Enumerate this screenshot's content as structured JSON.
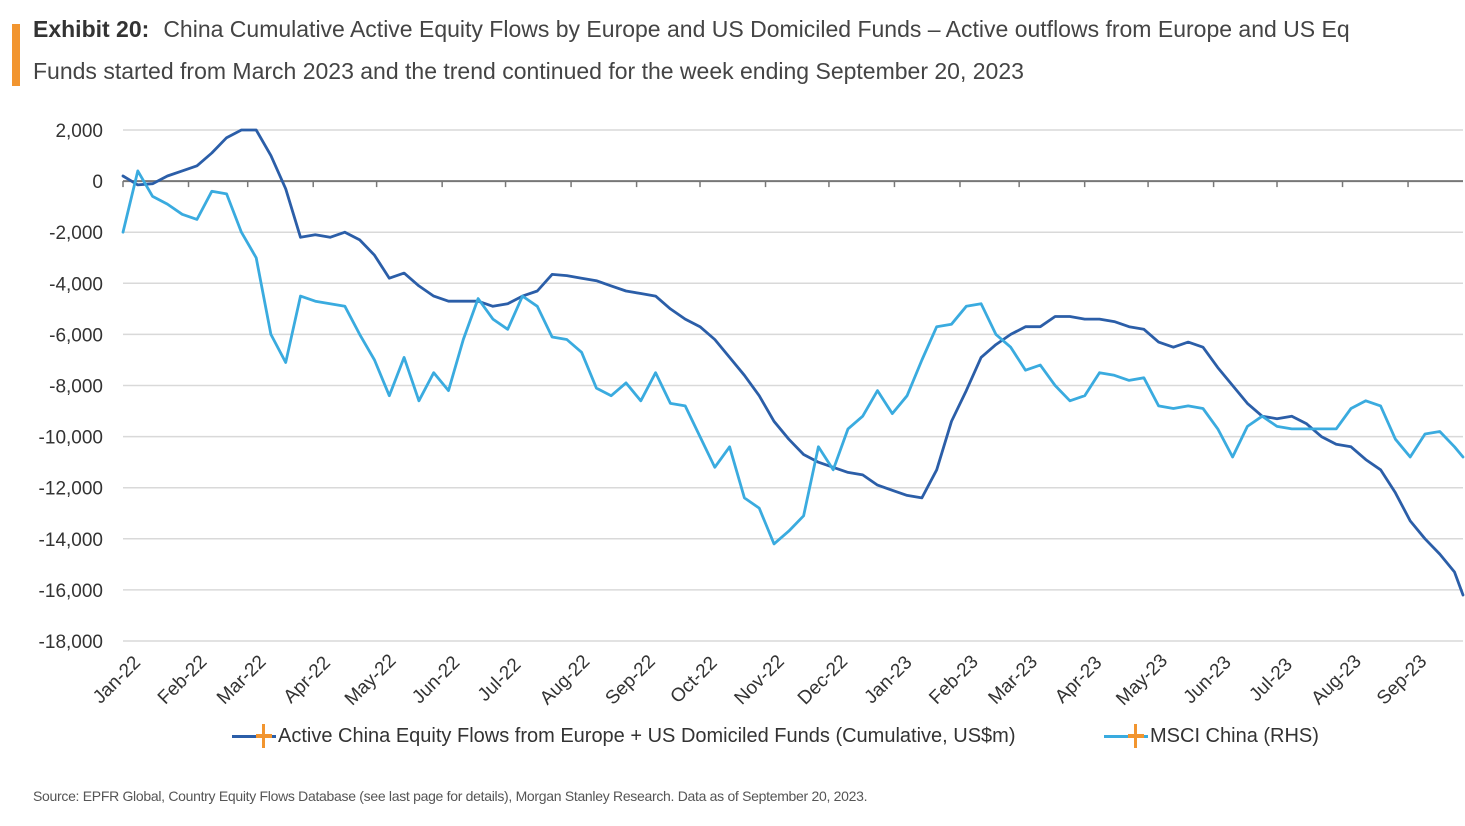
{
  "header": {
    "exhibit_label": "Exhibit 20:",
    "title_line1": "China Cumulative Active Equity Flows by Europe and US Domiciled Funds – Active outflows from Europe and US Eq",
    "title_line2": "Funds started from March 2023 and the trend continued for the week ending September 20, 2023"
  },
  "colors": {
    "accent": "#f2952f",
    "series_dark": "#2b5ea8",
    "series_light": "#3aabdf",
    "grid": "#d9d9d9",
    "axis": "#777777"
  },
  "legend": {
    "item1": "Active China Equity Flows from Europe + US Domiciled Funds (Cumulative, US$m)",
    "item2": "MSCI China (RHS)"
  },
  "source": "Source: EPFR Global, Country Equity Flows Database (see last page for details), Morgan Stanley Research. Data as of September 20, 2023.",
  "chart_data": {
    "type": "line",
    "ylim": [
      -18000,
      2000
    ],
    "yticks": [
      2000,
      0,
      -2000,
      -4000,
      -6000,
      -8000,
      -10000,
      -12000,
      -14000,
      -16000,
      -18000
    ],
    "ytick_labels": [
      "2,000",
      "0",
      "-2,000",
      "-4,000",
      "-6,000",
      "-8,000",
      "-10,000",
      "-12,000",
      "-14,000",
      "-16,000",
      "-18,000"
    ],
    "x_labels": [
      "Jan-22",
      "Feb-22",
      "Mar-22",
      "Apr-22",
      "May-22",
      "Jun-22",
      "Jul-22",
      "Aug-22",
      "Sep-22",
      "Oct-22",
      "Nov-22",
      "Dec-22",
      "Jan-23",
      "Feb-23",
      "Mar-23",
      "Apr-23",
      "May-23",
      "Jun-23",
      "Jul-23",
      "Aug-23",
      "Sep-23"
    ],
    "x_range": [
      "2022-01-01",
      "2023-09-27"
    ],
    "grid": true,
    "legend_position": "bottom",
    "series": [
      {
        "name": "Active China Equity Flows from Europe + US Domiciled Funds (Cumulative, US$m)",
        "color": "#2b5ea8",
        "points": [
          [
            "2022-01-01",
            200
          ],
          [
            "2022-01-08",
            -150
          ],
          [
            "2022-01-15",
            -100
          ],
          [
            "2022-01-22",
            200
          ],
          [
            "2022-01-29",
            400
          ],
          [
            "2022-02-05",
            600
          ],
          [
            "2022-02-12",
            1100
          ],
          [
            "2022-02-19",
            1700
          ],
          [
            "2022-02-26",
            2000
          ],
          [
            "2022-03-05",
            2000
          ],
          [
            "2022-03-12",
            1000
          ],
          [
            "2022-03-19",
            -300
          ],
          [
            "2022-03-26",
            -2200
          ],
          [
            "2022-04-02",
            -2100
          ],
          [
            "2022-04-09",
            -2200
          ],
          [
            "2022-04-16",
            -2000
          ],
          [
            "2022-04-23",
            -2300
          ],
          [
            "2022-04-30",
            -2900
          ],
          [
            "2022-05-07",
            -3800
          ],
          [
            "2022-05-14",
            -3600
          ],
          [
            "2022-05-21",
            -4100
          ],
          [
            "2022-05-28",
            -4500
          ],
          [
            "2022-06-04",
            -4700
          ],
          [
            "2022-06-11",
            -4700
          ],
          [
            "2022-06-18",
            -4700
          ],
          [
            "2022-06-25",
            -4900
          ],
          [
            "2022-07-02",
            -4800
          ],
          [
            "2022-07-09",
            -4500
          ],
          [
            "2022-07-16",
            -4300
          ],
          [
            "2022-07-23",
            -3650
          ],
          [
            "2022-07-30",
            -3700
          ],
          [
            "2022-08-06",
            -3800
          ],
          [
            "2022-08-13",
            -3900
          ],
          [
            "2022-08-20",
            -4100
          ],
          [
            "2022-08-27",
            -4300
          ],
          [
            "2022-09-03",
            -4400
          ],
          [
            "2022-09-10",
            -4500
          ],
          [
            "2022-09-17",
            -5000
          ],
          [
            "2022-09-24",
            -5400
          ],
          [
            "2022-10-01",
            -5700
          ],
          [
            "2022-10-08",
            -6200
          ],
          [
            "2022-10-15",
            -6900
          ],
          [
            "2022-10-22",
            -7600
          ],
          [
            "2022-10-29",
            -8400
          ],
          [
            "2022-11-05",
            -9400
          ],
          [
            "2022-11-12",
            -10100
          ],
          [
            "2022-11-19",
            -10700
          ],
          [
            "2022-11-26",
            -11000
          ],
          [
            "2022-12-03",
            -11200
          ],
          [
            "2022-12-10",
            -11400
          ],
          [
            "2022-12-17",
            -11500
          ],
          [
            "2022-12-24",
            -11900
          ],
          [
            "2022-12-31",
            -12100
          ],
          [
            "2023-01-07",
            -12300
          ],
          [
            "2023-01-14",
            -12400
          ],
          [
            "2023-01-21",
            -11300
          ],
          [
            "2023-01-28",
            -9400
          ],
          [
            "2023-02-04",
            -8200
          ],
          [
            "2023-02-11",
            -6900
          ],
          [
            "2023-02-18",
            -6400
          ],
          [
            "2023-02-25",
            -6000
          ],
          [
            "2023-03-04",
            -5700
          ],
          [
            "2023-03-11",
            -5700
          ],
          [
            "2023-03-18",
            -5300
          ],
          [
            "2023-03-25",
            -5300
          ],
          [
            "2023-04-01",
            -5400
          ],
          [
            "2023-04-08",
            -5400
          ],
          [
            "2023-04-15",
            -5500
          ],
          [
            "2023-04-22",
            -5700
          ],
          [
            "2023-04-29",
            -5800
          ],
          [
            "2023-05-06",
            -6300
          ],
          [
            "2023-05-13",
            -6500
          ],
          [
            "2023-05-20",
            -6300
          ],
          [
            "2023-05-27",
            -6500
          ],
          [
            "2023-06-03",
            -7300
          ],
          [
            "2023-06-10",
            -8000
          ],
          [
            "2023-06-17",
            -8700
          ],
          [
            "2023-06-24",
            -9200
          ],
          [
            "2023-07-01",
            -9300
          ],
          [
            "2023-07-08",
            -9200
          ],
          [
            "2023-07-15",
            -9500
          ],
          [
            "2023-07-22",
            -10000
          ],
          [
            "2023-07-29",
            -10300
          ],
          [
            "2023-08-05",
            -10400
          ],
          [
            "2023-08-12",
            -10900
          ],
          [
            "2023-08-19",
            -11300
          ],
          [
            "2023-08-26",
            -12200
          ],
          [
            "2023-09-02",
            -13300
          ],
          [
            "2023-09-09",
            -14000
          ],
          [
            "2023-09-16",
            -14600
          ],
          [
            "2023-09-23",
            -15300
          ],
          [
            "2023-09-27",
            -16200
          ]
        ]
      },
      {
        "name": "MSCI China (RHS)",
        "color": "#3aabdf",
        "points": [
          [
            "2022-01-01",
            -2000
          ],
          [
            "2022-01-08",
            400
          ],
          [
            "2022-01-15",
            -600
          ],
          [
            "2022-01-22",
            -900
          ],
          [
            "2022-01-29",
            -1300
          ],
          [
            "2022-02-05",
            -1500
          ],
          [
            "2022-02-12",
            -400
          ],
          [
            "2022-02-19",
            -500
          ],
          [
            "2022-02-26",
            -2000
          ],
          [
            "2022-03-05",
            -3000
          ],
          [
            "2022-03-12",
            -6000
          ],
          [
            "2022-03-19",
            -7100
          ],
          [
            "2022-03-26",
            -4500
          ],
          [
            "2022-04-02",
            -4700
          ],
          [
            "2022-04-09",
            -4800
          ],
          [
            "2022-04-16",
            -4900
          ],
          [
            "2022-04-23",
            -6000
          ],
          [
            "2022-04-30",
            -7000
          ],
          [
            "2022-05-07",
            -8400
          ],
          [
            "2022-05-14",
            -6900
          ],
          [
            "2022-05-21",
            -8600
          ],
          [
            "2022-05-28",
            -7500
          ],
          [
            "2022-06-04",
            -8200
          ],
          [
            "2022-06-11",
            -6200
          ],
          [
            "2022-06-18",
            -4600
          ],
          [
            "2022-06-25",
            -5400
          ],
          [
            "2022-07-02",
            -5800
          ],
          [
            "2022-07-09",
            -4500
          ],
          [
            "2022-07-16",
            -4900
          ],
          [
            "2022-07-23",
            -6100
          ],
          [
            "2022-07-30",
            -6200
          ],
          [
            "2022-08-06",
            -6700
          ],
          [
            "2022-08-13",
            -8100
          ],
          [
            "2022-08-20",
            -8400
          ],
          [
            "2022-08-27",
            -7900
          ],
          [
            "2022-09-03",
            -8600
          ],
          [
            "2022-09-10",
            -7500
          ],
          [
            "2022-09-17",
            -8700
          ],
          [
            "2022-09-24",
            -8800
          ],
          [
            "2022-10-01",
            -10000
          ],
          [
            "2022-10-08",
            -11200
          ],
          [
            "2022-10-15",
            -10400
          ],
          [
            "2022-10-22",
            -12400
          ],
          [
            "2022-10-29",
            -12800
          ],
          [
            "2022-11-05",
            -14200
          ],
          [
            "2022-11-12",
            -13700
          ],
          [
            "2022-11-19",
            -13100
          ],
          [
            "2022-11-26",
            -10400
          ],
          [
            "2022-12-03",
            -11300
          ],
          [
            "2022-12-10",
            -9700
          ],
          [
            "2022-12-17",
            -9200
          ],
          [
            "2022-12-24",
            -8200
          ],
          [
            "2022-12-31",
            -9100
          ],
          [
            "2023-01-07",
            -8400
          ],
          [
            "2023-01-14",
            -7000
          ],
          [
            "2023-01-21",
            -5700
          ],
          [
            "2023-01-28",
            -5600
          ],
          [
            "2023-02-04",
            -4900
          ],
          [
            "2023-02-11",
            -4800
          ],
          [
            "2023-02-18",
            -6000
          ],
          [
            "2023-02-25",
            -6500
          ],
          [
            "2023-03-04",
            -7400
          ],
          [
            "2023-03-11",
            -7200
          ],
          [
            "2023-03-18",
            -8000
          ],
          [
            "2023-03-25",
            -8600
          ],
          [
            "2023-04-01",
            -8400
          ],
          [
            "2023-04-08",
            -7500
          ],
          [
            "2023-04-15",
            -7600
          ],
          [
            "2023-04-22",
            -7800
          ],
          [
            "2023-04-29",
            -7700
          ],
          [
            "2023-05-06",
            -8800
          ],
          [
            "2023-05-13",
            -8900
          ],
          [
            "2023-05-20",
            -8800
          ],
          [
            "2023-05-27",
            -8900
          ],
          [
            "2023-06-03",
            -9700
          ],
          [
            "2023-06-10",
            -10800
          ],
          [
            "2023-06-17",
            -9600
          ],
          [
            "2023-06-24",
            -9200
          ],
          [
            "2023-07-01",
            -9600
          ],
          [
            "2023-07-08",
            -9700
          ],
          [
            "2023-07-15",
            -9700
          ],
          [
            "2023-07-22",
            -9700
          ],
          [
            "2023-07-29",
            -9700
          ],
          [
            "2023-08-05",
            -8900
          ],
          [
            "2023-08-12",
            -8600
          ],
          [
            "2023-08-19",
            -8800
          ],
          [
            "2023-08-26",
            -10100
          ],
          [
            "2023-09-02",
            -10800
          ],
          [
            "2023-09-09",
            -9900
          ],
          [
            "2023-09-16",
            -9800
          ],
          [
            "2023-09-23",
            -10400
          ],
          [
            "2023-09-27",
            -10800
          ]
        ]
      }
    ]
  }
}
